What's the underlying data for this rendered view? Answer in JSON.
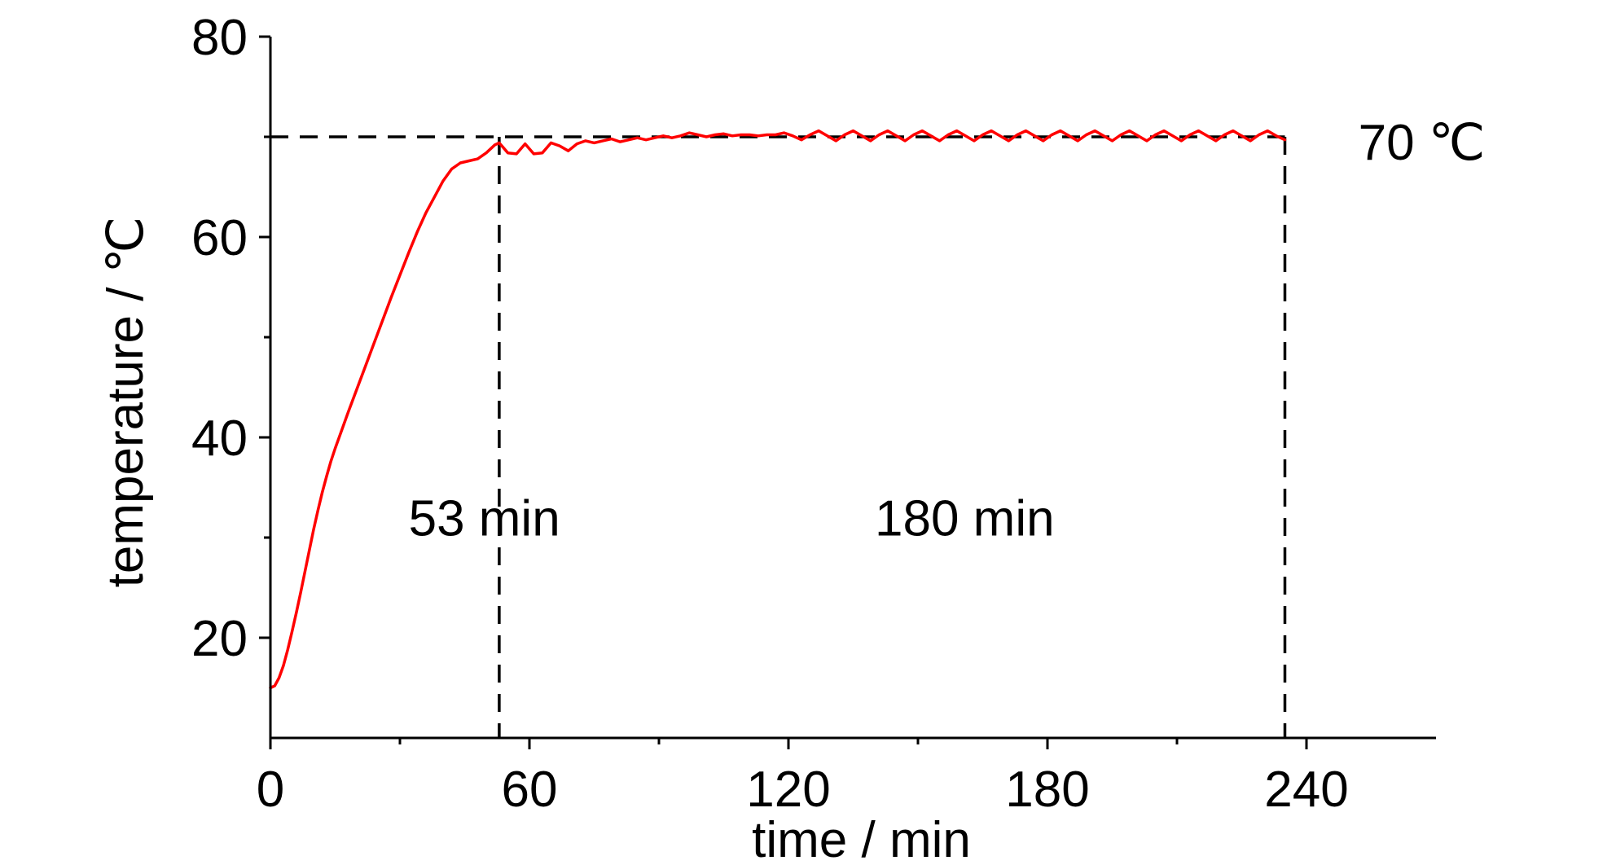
{
  "chart_data": {
    "type": "line",
    "xlabel": "time / min",
    "ylabel": "temperature / ℃",
    "xlim": [
      0,
      270
    ],
    "ylim": [
      10,
      80
    ],
    "xticks": [
      0,
      60,
      120,
      180,
      240
    ],
    "yticks": [
      20,
      40,
      60,
      80
    ],
    "x_minor_ticks": [
      30,
      90,
      150,
      210
    ],
    "y_minor_ticks": [
      30,
      50,
      70
    ],
    "grid": false,
    "series": [
      {
        "color": "#ff0000",
        "points": [
          [
            0,
            15
          ],
          [
            1,
            15.2
          ],
          [
            2,
            16
          ],
          [
            3,
            17.2
          ],
          [
            4,
            18.8
          ],
          [
            5,
            20.6
          ],
          [
            6,
            22.5
          ],
          [
            7,
            24.5
          ],
          [
            8,
            26.6
          ],
          [
            9,
            28.7
          ],
          [
            10,
            30.8
          ],
          [
            11,
            32.7
          ],
          [
            12,
            34.5
          ],
          [
            13,
            36.1
          ],
          [
            14,
            37.6
          ],
          [
            15,
            38.9
          ],
          [
            16,
            40.1
          ],
          [
            18,
            42.5
          ],
          [
            20,
            44.8
          ],
          [
            22,
            47.1
          ],
          [
            24,
            49.4
          ],
          [
            26,
            51.7
          ],
          [
            28,
            54.0
          ],
          [
            30,
            56.2
          ],
          [
            32,
            58.4
          ],
          [
            34,
            60.5
          ],
          [
            36,
            62.4
          ],
          [
            38,
            64.0
          ],
          [
            40,
            65.6
          ],
          [
            42,
            66.8
          ],
          [
            44,
            67.4
          ],
          [
            46,
            67.6
          ],
          [
            48,
            67.8
          ],
          [
            50,
            68.4
          ],
          [
            52,
            69.2
          ],
          [
            53,
            69.4
          ],
          [
            55,
            68.4
          ],
          [
            57,
            68.3
          ],
          [
            59,
            69.3
          ],
          [
            61,
            68.3
          ],
          [
            63,
            68.4
          ],
          [
            65,
            69.4
          ],
          [
            67,
            69.1
          ],
          [
            69,
            68.6
          ],
          [
            71,
            69.3
          ],
          [
            73,
            69.6
          ],
          [
            75,
            69.4
          ],
          [
            77,
            69.6
          ],
          [
            79,
            69.8
          ],
          [
            81,
            69.5
          ],
          [
            83,
            69.7
          ],
          [
            85,
            69.9
          ],
          [
            87,
            69.7
          ],
          [
            89,
            69.9
          ],
          [
            91,
            70.1
          ],
          [
            93,
            69.9
          ],
          [
            95,
            70.1
          ],
          [
            97,
            70.4
          ],
          [
            99,
            70.2
          ],
          [
            101,
            70.0
          ],
          [
            103,
            70.2
          ],
          [
            105,
            70.3
          ],
          [
            107,
            70.1
          ],
          [
            109,
            70.2
          ],
          [
            111,
            70.2
          ],
          [
            113,
            70.1
          ],
          [
            115,
            70.2
          ],
          [
            117,
            70.2
          ],
          [
            119,
            70.4
          ],
          [
            121,
            70.1
          ],
          [
            123,
            69.7
          ],
          [
            125,
            70.2
          ],
          [
            127,
            70.6
          ],
          [
            129,
            70.1
          ],
          [
            131,
            69.6
          ],
          [
            133,
            70.2
          ],
          [
            135,
            70.6
          ],
          [
            137,
            70.1
          ],
          [
            139,
            69.6
          ],
          [
            141,
            70.2
          ],
          [
            143,
            70.6
          ],
          [
            145,
            70.1
          ],
          [
            147,
            69.6
          ],
          [
            149,
            70.2
          ],
          [
            151,
            70.6
          ],
          [
            153,
            70.1
          ],
          [
            155,
            69.6
          ],
          [
            157,
            70.2
          ],
          [
            159,
            70.6
          ],
          [
            161,
            70.1
          ],
          [
            163,
            69.6
          ],
          [
            165,
            70.2
          ],
          [
            167,
            70.6
          ],
          [
            169,
            70.1
          ],
          [
            171,
            69.6
          ],
          [
            173,
            70.2
          ],
          [
            175,
            70.6
          ],
          [
            177,
            70.1
          ],
          [
            179,
            69.6
          ],
          [
            181,
            70.2
          ],
          [
            183,
            70.6
          ],
          [
            185,
            70.1
          ],
          [
            187,
            69.6
          ],
          [
            189,
            70.2
          ],
          [
            191,
            70.6
          ],
          [
            193,
            70.1
          ],
          [
            195,
            69.6
          ],
          [
            197,
            70.2
          ],
          [
            199,
            70.6
          ],
          [
            201,
            70.1
          ],
          [
            203,
            69.6
          ],
          [
            205,
            70.2
          ],
          [
            207,
            70.6
          ],
          [
            209,
            70.1
          ],
          [
            211,
            69.6
          ],
          [
            213,
            70.2
          ],
          [
            215,
            70.6
          ],
          [
            217,
            70.1
          ],
          [
            219,
            69.6
          ],
          [
            221,
            70.2
          ],
          [
            223,
            70.6
          ],
          [
            225,
            70.1
          ],
          [
            227,
            69.6
          ],
          [
            229,
            70.2
          ],
          [
            231,
            70.6
          ],
          [
            233,
            70.1
          ],
          [
            235,
            69.7
          ]
        ]
      }
    ],
    "reference_lines": {
      "horizontal_y": 70,
      "horizontal_x_range": [
        0,
        235
      ],
      "vertical_x": [
        53,
        235
      ]
    },
    "annotations": [
      {
        "text": "53 min",
        "x": 32,
        "y": 32
      },
      {
        "text": "180 min",
        "x": 140,
        "y": 32
      },
      {
        "text": "70 ℃",
        "x": 252,
        "y": 69.5
      }
    ]
  }
}
